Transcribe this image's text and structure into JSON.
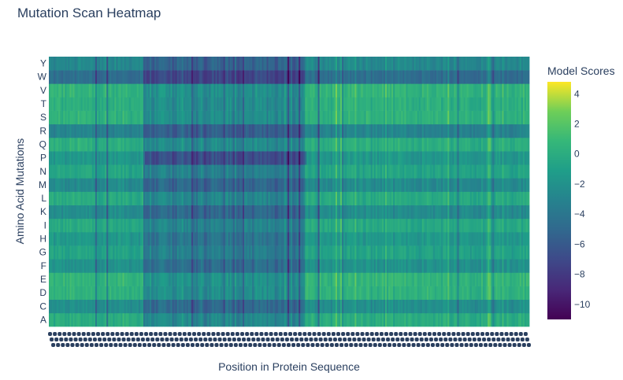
{
  "chart_data": {
    "type": "heatmap",
    "title": "Mutation Scan Heatmap",
    "xlabel": "Position in Protein Sequence",
    "ylabel": "Amino Acid Mutations",
    "y_categories": [
      "A",
      "C",
      "D",
      "E",
      "F",
      "G",
      "H",
      "I",
      "K",
      "L",
      "M",
      "N",
      "P",
      "Q",
      "R",
      "S",
      "T",
      "V",
      "W",
      "Y"
    ],
    "x_range": [
      1,
      300
    ],
    "colorbar": {
      "title": "Model Scores",
      "range": [
        -11,
        4.8
      ],
      "ticks": [
        4,
        2,
        0,
        -2,
        -4,
        -6,
        -8,
        -10
      ],
      "tick_labels": [
        "4",
        "2",
        "0",
        "−2",
        "−4",
        "−6",
        "−8",
        "−10"
      ],
      "colorscale": "Viridis"
    },
    "row_baseline_scores": {
      "A": 0.0,
      "C": -2.2,
      "D": 0.4,
      "E": 0.6,
      "F": -2.0,
      "G": -0.8,
      "H": -1.5,
      "I": -0.3,
      "K": -2.4,
      "L": -0.2,
      "M": -2.5,
      "N": -0.6,
      "P": -1.6,
      "Q": 0.1,
      "R": -3.0,
      "S": 0.4,
      "T": 0.2,
      "V": 0.5,
      "W": -4.6,
      "Y": -2.6
    },
    "region_effects": [
      {
        "positions": [
          1,
          60
        ],
        "note": "mild"
      },
      {
        "positions": [
          60,
          160
        ],
        "note": "strong negative (destabilizing) region, P row darkest"
      },
      {
        "positions": [
          160,
          300
        ],
        "note": "mild"
      }
    ]
  }
}
